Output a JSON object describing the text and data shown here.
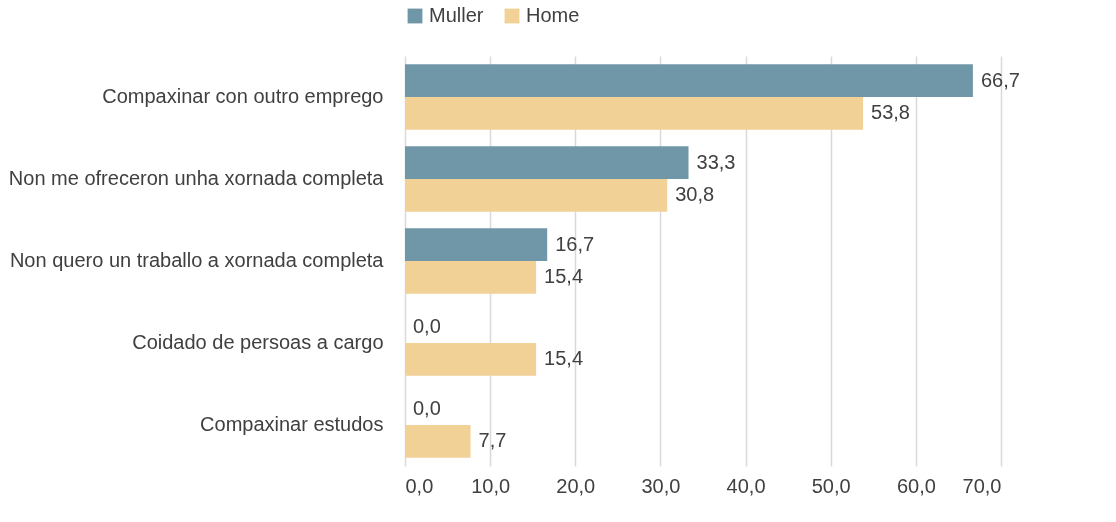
{
  "chart_data": {
    "type": "bar",
    "orientation": "horizontal",
    "categories": [
      "Compaxinar con outro emprego",
      "Non me ofreceron unha xornada completa",
      "Non quero un traballo a xornada completa",
      "Coidado de persoas a cargo",
      "Compaxinar estudos"
    ],
    "series": [
      {
        "name": "Muller",
        "color": "#7097a8",
        "values": [
          66.7,
          33.3,
          16.7,
          0.0,
          0.0
        ],
        "value_labels": [
          "66,7",
          "33,3",
          "16,7",
          "0,0",
          "0,0"
        ]
      },
      {
        "name": "Home",
        "color": "#f2d196",
        "values": [
          53.8,
          30.8,
          15.4,
          15.4,
          7.7
        ],
        "value_labels": [
          "53,8",
          "30,8",
          "15,4",
          "15,4",
          "7,7"
        ]
      }
    ],
    "xlim": [
      0,
      70
    ],
    "xticks": [
      {
        "value": 0,
        "label": "0,0"
      },
      {
        "value": 10,
        "label": "10,0"
      },
      {
        "value": 20,
        "label": "20,0"
      },
      {
        "value": 30,
        "label": "30,0"
      },
      {
        "value": 40,
        "label": "40,0"
      },
      {
        "value": 50,
        "label": "50,0"
      },
      {
        "value": 60,
        "label": "60,0"
      },
      {
        "value": 70,
        "label": "70,0"
      }
    ],
    "grid": "x",
    "legend": "top"
  }
}
